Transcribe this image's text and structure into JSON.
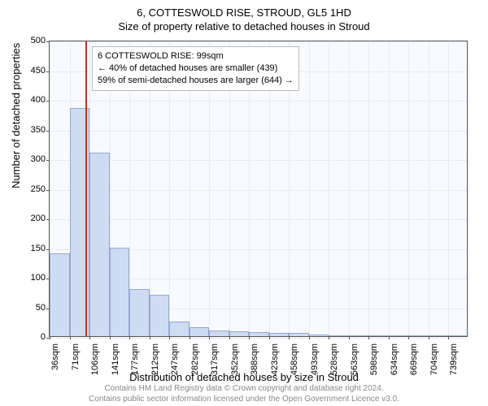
{
  "title_main": "6, COTTESWOLD RISE, STROUD, GL5 1HD",
  "title_sub": "Size of property relative to detached houses in Stroud",
  "ylabel": "Number of detached properties",
  "xlabel": "Distribution of detached houses by size in Stroud",
  "footer_line1": "Contains HM Land Registry data © Crown copyright and database right 2024.",
  "footer_line2": "Contains public sector information licensed under the Open Government Licence v3.0.",
  "chart": {
    "type": "bar",
    "background_color": "#f8faff",
    "grid_color": "#e6ebf4",
    "bar_fill": "#cfdbf2",
    "bar_border": "#92a8d0",
    "marker_color": "#c03030",
    "border_color": "#555555",
    "ylim": [
      0,
      500
    ],
    "yticks": [
      0,
      50,
      100,
      150,
      200,
      250,
      300,
      350,
      400,
      450,
      500
    ],
    "xtick_labels": [
      "36sqm",
      "71sqm",
      "106sqm",
      "141sqm",
      "177sqm",
      "212sqm",
      "247sqm",
      "282sqm",
      "317sqm",
      "352sqm",
      "388sqm",
      "423sqm",
      "458sqm",
      "493sqm",
      "528sqm",
      "563sqm",
      "598sqm",
      "634sqm",
      "669sqm",
      "704sqm",
      "739sqm"
    ],
    "values": [
      140,
      385,
      310,
      150,
      80,
      70,
      25,
      15,
      10,
      8,
      7,
      5,
      5,
      3,
      2,
      2,
      2,
      1,
      1,
      1,
      1
    ],
    "marker_position_value": 99,
    "x_range": [
      36,
      774
    ],
    "label_fontsize": 13,
    "tick_fontsize": 11,
    "title_fontsize": 13
  },
  "annotation": {
    "line1": "6 COTTESWOLD RISE: 99sqm",
    "line2": "← 40% of detached houses are smaller (439)",
    "line3": "59% of semi-detached houses are larger (644) →",
    "box_border": "#bbbbbb",
    "box_bg": "#ffffff"
  }
}
